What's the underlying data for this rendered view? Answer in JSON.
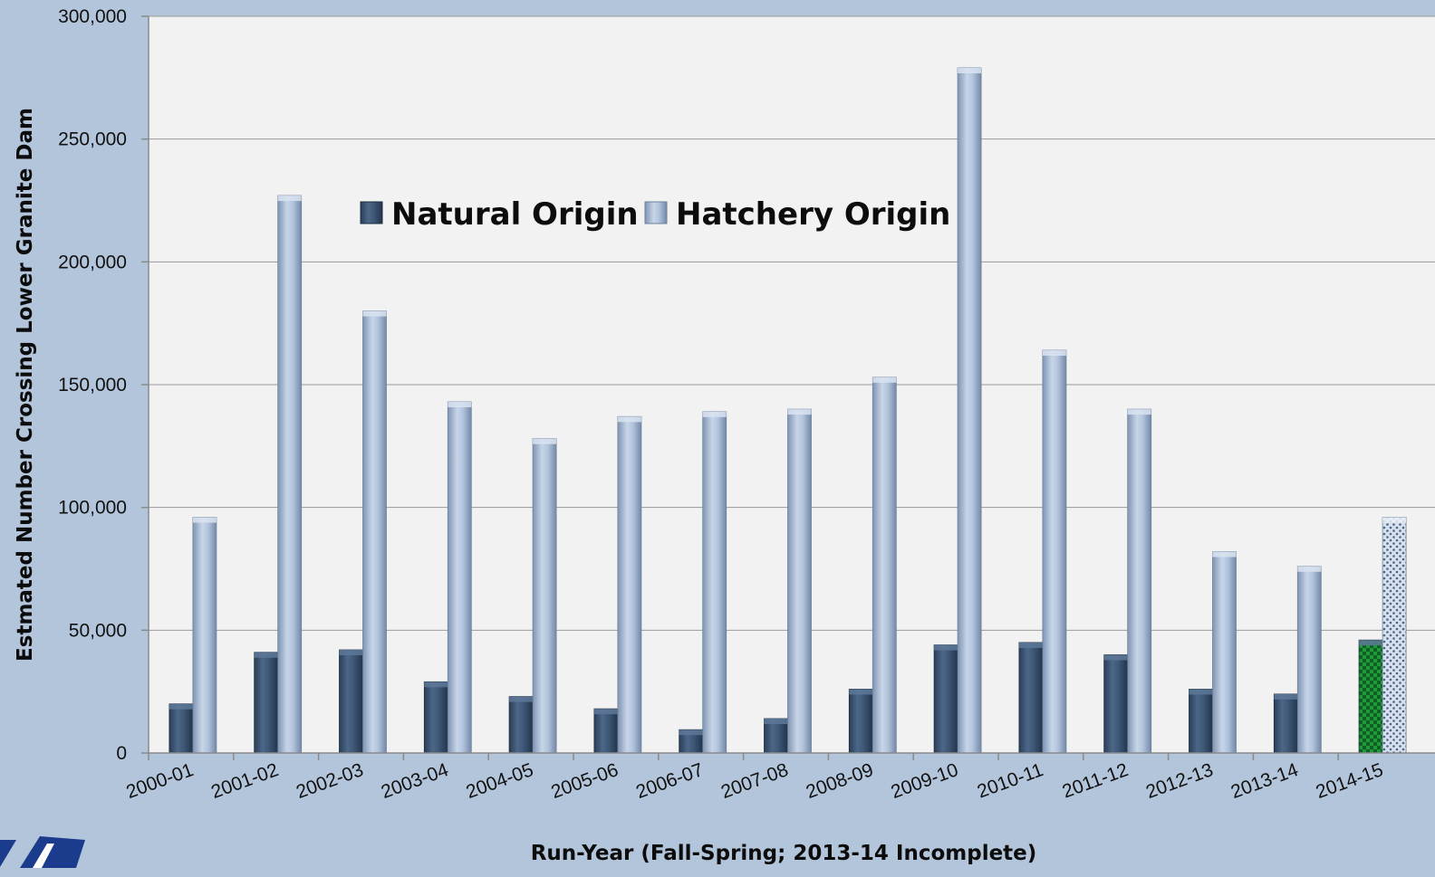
{
  "chart_data": {
    "type": "bar",
    "title": "",
    "xlabel": "Run-Year (Fall-Spring; 2013-14 Incomplete)",
    "ylabel": "Estmated Number Crossing Lower Granite Dam",
    "ylim": [
      0,
      300000
    ],
    "yticks": [
      0,
      50000,
      100000,
      150000,
      200000,
      250000,
      300000
    ],
    "ytick_labels": [
      "0",
      "50,000",
      "100,000",
      "150,000",
      "200,000",
      "250,000",
      "300,000"
    ],
    "grid": true,
    "legend_position": "top-center",
    "categories": [
      "2000-01",
      "2001-02",
      "2002-03",
      "2003-04",
      "2004-05",
      "2005-06",
      "2006-07",
      "2007-08",
      "2008-09",
      "2009-10",
      "2010-11",
      "2011-12",
      "2012-13",
      "2013-14",
      "2014-15"
    ],
    "series": [
      {
        "name": "Natural Origin",
        "color": "#3d5675",
        "values": [
          20000,
          41000,
          42000,
          29000,
          23000,
          18000,
          9500,
          14000,
          26000,
          44000,
          45000,
          40000,
          26000,
          24000,
          46000
        ]
      },
      {
        "name": "Hatchery Origin",
        "color": "#a9bcd6",
        "values": [
          96000,
          227000,
          180000,
          143000,
          128000,
          137000,
          139000,
          140000,
          153000,
          279000,
          164000,
          140000,
          82000,
          76000,
          96000
        ]
      }
    ],
    "highlight_category": "2014-15",
    "highlight_colors": {
      "natural": "#1f9a3a",
      "hatchery": "#ccd9ea"
    }
  }
}
